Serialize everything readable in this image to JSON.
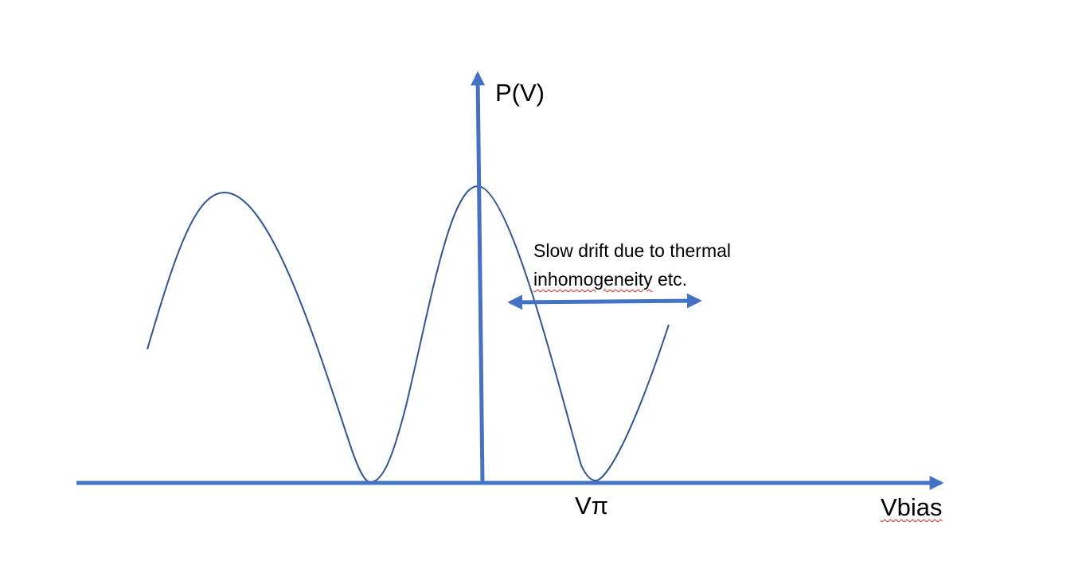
{
  "diagram": {
    "y_axis_label": "P(V)",
    "x_axis_label": "Vbias",
    "x_tick_label": "Vπ",
    "annotation": {
      "line1": "Slow drift due to thermal",
      "line2_word": "inhomogeneity",
      "line2_rest": " etc."
    },
    "colors": {
      "axis": "#4472c4",
      "curve": "#2f5597",
      "arrow": "#4472c4",
      "spellcheck_underline": "#e0262a"
    }
  }
}
